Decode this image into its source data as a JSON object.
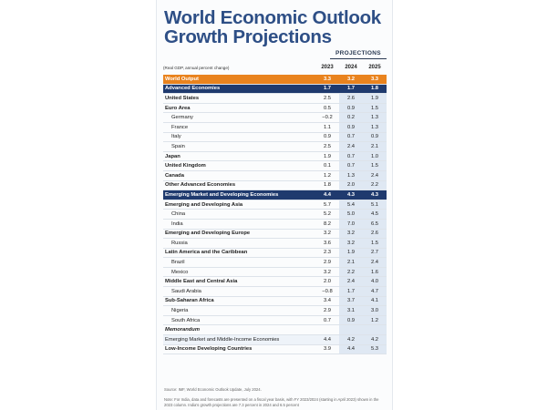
{
  "title_line1": "World Economic Outlook",
  "title_line2": "Growth Projections",
  "projections_label": "PROJECTIONS",
  "header": {
    "units": "(Real GDP, annual percent change)",
    "years": [
      "2023",
      "2024",
      "2025"
    ]
  },
  "rows": [
    {
      "label": "World Output",
      "v": [
        "3.3",
        "3.2",
        "3.3"
      ],
      "style": "orange"
    },
    {
      "label": "Advanced Economies",
      "v": [
        "1.7",
        "1.7",
        "1.8"
      ],
      "style": "navy"
    },
    {
      "label": "United States",
      "v": [
        "2.5",
        "2.6",
        "1.9"
      ],
      "style": "bold"
    },
    {
      "label": "Euro Area",
      "v": [
        "0.5",
        "0.9",
        "1.5"
      ],
      "style": "bold"
    },
    {
      "label": "Germany",
      "v": [
        "−0.2",
        "0.2",
        "1.3"
      ],
      "style": "indent"
    },
    {
      "label": "France",
      "v": [
        "1.1",
        "0.9",
        "1.3"
      ],
      "style": "indent"
    },
    {
      "label": "Italy",
      "v": [
        "0.9",
        "0.7",
        "0.9"
      ],
      "style": "indent"
    },
    {
      "label": "Spain",
      "v": [
        "2.5",
        "2.4",
        "2.1"
      ],
      "style": "indent"
    },
    {
      "label": "Japan",
      "v": [
        "1.9",
        "0.7",
        "1.0"
      ],
      "style": "bold"
    },
    {
      "label": "United Kingdom",
      "v": [
        "0.1",
        "0.7",
        "1.5"
      ],
      "style": "bold"
    },
    {
      "label": "Canada",
      "v": [
        "1.2",
        "1.3",
        "2.4"
      ],
      "style": "bold"
    },
    {
      "label": "Other Advanced Economies",
      "v": [
        "1.8",
        "2.0",
        "2.2"
      ],
      "style": "bold"
    },
    {
      "label": "Emerging Market and Developing Economies",
      "v": [
        "4.4",
        "4.3",
        "4.3"
      ],
      "style": "navy"
    },
    {
      "label": "Emerging and Developing Asia",
      "v": [
        "5.7",
        "5.4",
        "5.1"
      ],
      "style": "bold"
    },
    {
      "label": "China",
      "v": [
        "5.2",
        "5.0",
        "4.5"
      ],
      "style": "indent"
    },
    {
      "label": "India",
      "v": [
        "8.2",
        "7.0",
        "6.5"
      ],
      "style": "indent"
    },
    {
      "label": "Emerging and Developing Europe",
      "v": [
        "3.2",
        "3.2",
        "2.6"
      ],
      "style": "bold"
    },
    {
      "label": "Russia",
      "v": [
        "3.6",
        "3.2",
        "1.5"
      ],
      "style": "indent"
    },
    {
      "label": "Latin America and the Caribbean",
      "v": [
        "2.3",
        "1.9",
        "2.7"
      ],
      "style": "bold"
    },
    {
      "label": "Brazil",
      "v": [
        "2.9",
        "2.1",
        "2.4"
      ],
      "style": "indent"
    },
    {
      "label": "Mexico",
      "v": [
        "3.2",
        "2.2",
        "1.6"
      ],
      "style": "indent"
    },
    {
      "label": "Middle East and Central Asia",
      "v": [
        "2.0",
        "2.4",
        "4.0"
      ],
      "style": "bold"
    },
    {
      "label": "Saudi Arabia",
      "v": [
        "−0.8",
        "1.7",
        "4.7"
      ],
      "style": "indent"
    },
    {
      "label": "Sub-Saharan Africa",
      "v": [
        "3.4",
        "3.7",
        "4.1"
      ],
      "style": "bold"
    },
    {
      "label": "Nigeria",
      "v": [
        "2.9",
        "3.1",
        "3.0"
      ],
      "style": "indent"
    },
    {
      "label": "South Africa",
      "v": [
        "0.7",
        "0.9",
        "1.2"
      ],
      "style": "indent"
    },
    {
      "label": "Memorandum",
      "v": [
        "",
        "",
        ""
      ],
      "style": "italic"
    },
    {
      "label": "Emerging Market and Middle-Income Economies",
      "v": [
        "4.4",
        "4.2",
        "4.2"
      ],
      "style": "light"
    },
    {
      "label": "Low-Income Developing Countries",
      "v": [
        "3.9",
        "4.4",
        "5.3"
      ],
      "style": "bold"
    }
  ],
  "source": "Source: IMF, World Economic Outlook Update, July 2024.",
  "note": "Note: For India, data and forecasts are presented on a fiscal year basis, with FY 2023/2024 (starting in April 2023) shown in the 2023 column. India's growth projections are 7.3 percent in 2024 and 6.5 percent"
}
